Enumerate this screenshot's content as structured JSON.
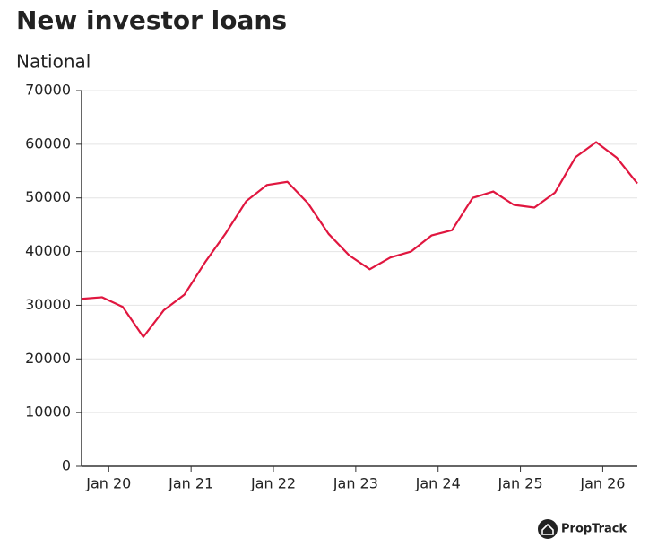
{
  "chart_data": {
    "type": "line",
    "title": "New investor loans",
    "subtitle": "National",
    "brand": "PropTrack",
    "x": [
      2019.67,
      2019.92,
      2020.17,
      2020.42,
      2020.67,
      2020.92,
      2021.17,
      2021.42,
      2021.67,
      2021.92,
      2022.17,
      2022.42,
      2022.67,
      2022.92,
      2023.17,
      2023.42,
      2023.67,
      2023.92,
      2024.17,
      2024.42,
      2024.67,
      2024.92,
      2025.17,
      2025.42,
      2025.67,
      2025.92,
      2026.17,
      2026.42
    ],
    "series": [
      {
        "name": "New investor loans",
        "color": "#e0163f",
        "values": [
          31200,
          31500,
          29700,
          24100,
          29100,
          32000,
          38000,
          43400,
          49400,
          52400,
          53000,
          49000,
          43300,
          39300,
          36700,
          38900,
          40000,
          43000,
          44000,
          50000,
          51200,
          48700,
          48200,
          51000,
          57600,
          60400,
          57500,
          52700
        ]
      }
    ],
    "xlim": [
      2019.67,
      2026.42
    ],
    "xticks": [
      {
        "value": 2020,
        "label": "Jan 20"
      },
      {
        "value": 2021,
        "label": "Jan 21"
      },
      {
        "value": 2022,
        "label": "Jan 22"
      },
      {
        "value": 2023,
        "label": "Jan 23"
      },
      {
        "value": 2024,
        "label": "Jan 24"
      },
      {
        "value": 2025,
        "label": "Jan 25"
      },
      {
        "value": 2026,
        "label": "Jan 26"
      }
    ],
    "ylim": [
      0,
      70000
    ],
    "yticks": [
      0,
      10000,
      20000,
      30000,
      40000,
      50000,
      60000,
      70000
    ],
    "grid": true
  }
}
